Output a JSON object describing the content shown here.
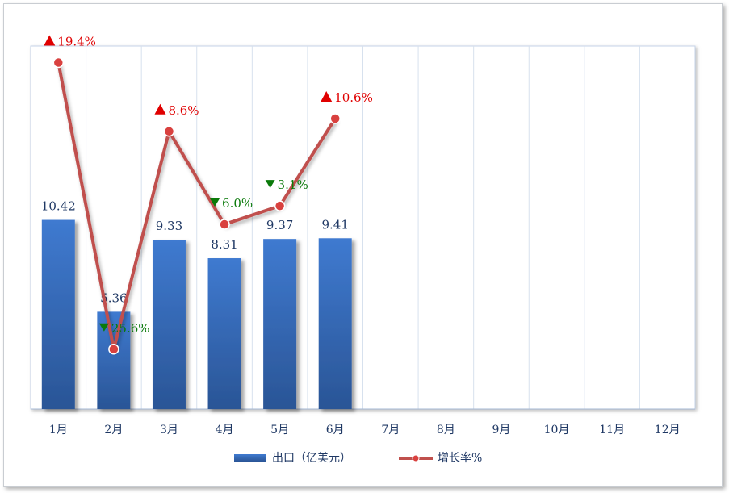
{
  "chart_data": {
    "type": "bar",
    "categories": [
      "1月",
      "2月",
      "3月",
      "4月",
      "5月",
      "6月",
      "7月",
      "8月",
      "9月",
      "10月",
      "11月",
      "12月"
    ],
    "series": [
      {
        "name": "出口（亿美元）",
        "type": "bar",
        "values": [
          10.42,
          5.36,
          9.33,
          8.31,
          9.37,
          9.41,
          null,
          null,
          null,
          null,
          null,
          null
        ],
        "labels": [
          "10.42",
          "5.36",
          "9.33",
          "8.31",
          "9.37",
          "9.41"
        ],
        "color": "#3a6fbf"
      },
      {
        "name": "增长率%",
        "type": "line",
        "values": [
          19.4,
          -25.6,
          8.6,
          -6.0,
          -3.1,
          10.6,
          null,
          null,
          null,
          null,
          null,
          null
        ],
        "labels": [
          "19.4%",
          "25.6%",
          "8.6%",
          "6.0%",
          "3.1%",
          "10.6%"
        ],
        "color": "#c0504d"
      }
    ],
    "bar_ylim": [
      0,
      20
    ],
    "line_ylim": [
      -35,
      22
    ],
    "up_color": "#e00000",
    "down_color": "#0a7a0a",
    "grid": "vertical",
    "legend_position": "bottom"
  }
}
